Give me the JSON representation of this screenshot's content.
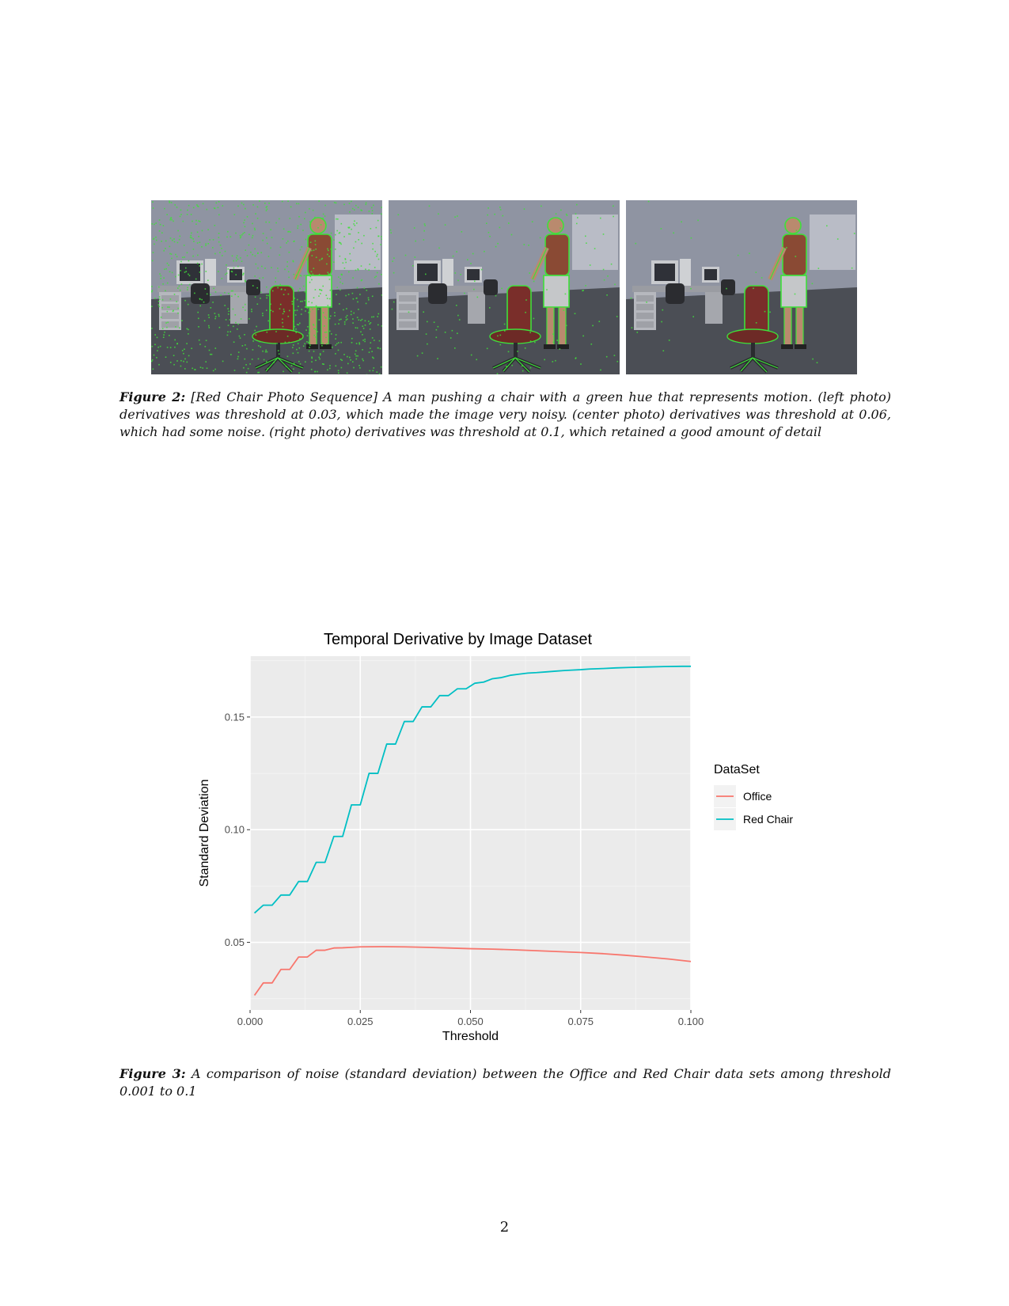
{
  "figure2": {
    "label": "Figure 2:",
    "text": "[Red Chair Photo Sequence] A man pushing a chair with a green hue that represents motion. (left photo) derivatives was threshold at 0.03, which made the image very noisy. (center photo) derivatives was threshold at 0.06, which had some noise. (right photo) derivatives was threshold at 0.1, which retained a good amount of detail",
    "photos": [
      {
        "threshold": 0.03,
        "noise_level": "high"
      },
      {
        "threshold": 0.06,
        "noise_level": "medium"
      },
      {
        "threshold": 0.1,
        "noise_level": "low"
      }
    ],
    "motion_color": "#3fe03a"
  },
  "figure3": {
    "label": "Figure 3:",
    "text": "A comparison of noise (standard deviation) between the Office and Red Chair data sets among threshold 0.001 to 0.1"
  },
  "chart_data": {
    "type": "line",
    "title": "Temporal Derivative by Image Dataset",
    "xlabel": "Threshold",
    "ylabel": "Standard Deviation",
    "xlim": [
      0.0,
      0.1
    ],
    "ylim": [
      0.02,
      0.177
    ],
    "x_ticks": [
      0.0,
      0.025,
      0.05,
      0.075,
      0.1
    ],
    "x_tick_labels": [
      "0.000",
      "0.025",
      "0.050",
      "0.075",
      "0.100"
    ],
    "y_ticks": [
      0.05,
      0.1,
      0.15
    ],
    "y_tick_labels": [
      "0.05",
      "0.10",
      "0.15"
    ],
    "grid": true,
    "legend": {
      "title": "DataSet",
      "position": "right"
    },
    "series": [
      {
        "name": "Office",
        "color": "#f8766d",
        "x": [
          0.001,
          0.003,
          0.005,
          0.007,
          0.009,
          0.011,
          0.013,
          0.015,
          0.017,
          0.019,
          0.021,
          0.023,
          0.025,
          0.03,
          0.035,
          0.04,
          0.045,
          0.05,
          0.055,
          0.06,
          0.065,
          0.07,
          0.075,
          0.08,
          0.085,
          0.09,
          0.095,
          0.1
        ],
        "y": [
          0.0265,
          0.032,
          0.032,
          0.038,
          0.038,
          0.0435,
          0.0435,
          0.0465,
          0.0465,
          0.0475,
          0.0476,
          0.0478,
          0.048,
          0.0481,
          0.048,
          0.0478,
          0.0475,
          0.0472,
          0.047,
          0.0467,
          0.0463,
          0.0459,
          0.0455,
          0.045,
          0.0443,
          0.0435,
          0.0426,
          0.0415
        ]
      },
      {
        "name": "Red Chair",
        "color": "#00bfc4",
        "x": [
          0.001,
          0.003,
          0.005,
          0.007,
          0.009,
          0.011,
          0.013,
          0.015,
          0.017,
          0.019,
          0.021,
          0.023,
          0.025,
          0.027,
          0.029,
          0.031,
          0.033,
          0.035,
          0.037,
          0.039,
          0.041,
          0.043,
          0.045,
          0.047,
          0.049,
          0.051,
          0.053,
          0.055,
          0.057,
          0.059,
          0.061,
          0.063,
          0.065,
          0.067,
          0.069,
          0.071,
          0.073,
          0.075,
          0.077,
          0.08,
          0.083,
          0.086,
          0.09,
          0.094,
          0.098,
          0.1
        ],
        "y": [
          0.063,
          0.0665,
          0.0665,
          0.071,
          0.071,
          0.077,
          0.077,
          0.0855,
          0.0855,
          0.097,
          0.097,
          0.111,
          0.111,
          0.125,
          0.125,
          0.138,
          0.138,
          0.148,
          0.148,
          0.1545,
          0.1545,
          0.1595,
          0.1595,
          0.1625,
          0.1625,
          0.165,
          0.1655,
          0.167,
          0.1675,
          0.1685,
          0.169,
          0.1695,
          0.1697,
          0.17,
          0.1703,
          0.1706,
          0.1708,
          0.171,
          0.1713,
          0.1715,
          0.1718,
          0.172,
          0.1722,
          0.1724,
          0.1725,
          0.1725
        ]
      }
    ]
  },
  "page": {
    "number": "2"
  }
}
